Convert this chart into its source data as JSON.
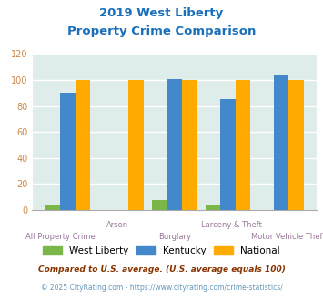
{
  "title_line1": "2019 West Liberty",
  "title_line2": "Property Crime Comparison",
  "title_color": "#1a6fbb",
  "categories": [
    "All Property Crime",
    "Arson",
    "Burglary",
    "Larceny & Theft",
    "Motor Vehicle Theft"
  ],
  "west_liberty": [
    4,
    0,
    8,
    4,
    0
  ],
  "kentucky": [
    90,
    0,
    101,
    85,
    104
  ],
  "national": [
    100,
    100,
    100,
    100,
    100
  ],
  "bar_color_wl": "#7ab648",
  "bar_color_ky": "#4488cc",
  "bar_color_nat": "#ffaa00",
  "ylim": [
    0,
    120
  ],
  "yticks": [
    0,
    20,
    40,
    60,
    80,
    100,
    120
  ],
  "bg_color": "#deecea",
  "footnote1": "Compared to U.S. average. (U.S. average equals 100)",
  "footnote2": "© 2025 CityRating.com - https://www.cityrating.com/crime-statistics/",
  "footnote1_color": "#883300",
  "footnote2_color": "#6699bb",
  "xlabel_color": "#997799",
  "xlabel_upper_color": "#997799",
  "grid_color": "#ffffff",
  "ytick_color": "#cc8844",
  "bar_width": 0.28
}
